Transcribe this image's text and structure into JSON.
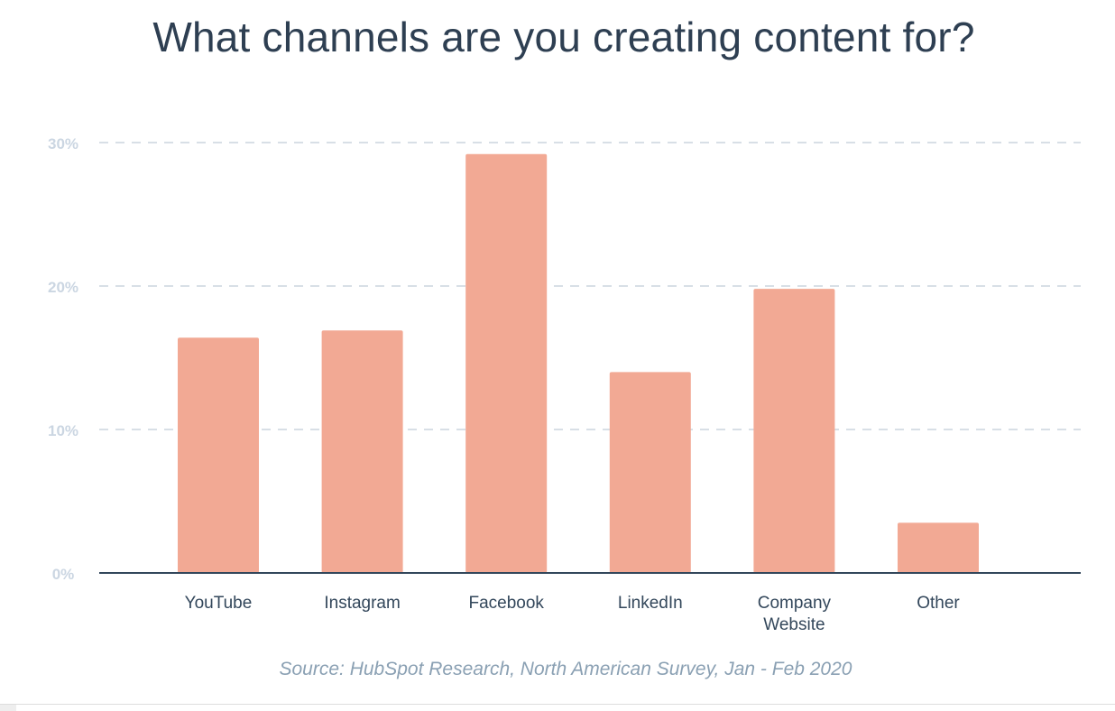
{
  "chart_data": {
    "type": "bar",
    "title": "What channels are you creating content for?",
    "categories": [
      "YouTube",
      "Instagram",
      "Facebook",
      "LinkedIn",
      "Company Website",
      "Other"
    ],
    "category_lines": [
      [
        "YouTube"
      ],
      [
        "Instagram"
      ],
      [
        "Facebook"
      ],
      [
        "LinkedIn"
      ],
      [
        "Company",
        "Website"
      ],
      [
        "Other"
      ]
    ],
    "values": [
      16.4,
      16.9,
      29.2,
      14.0,
      19.8,
      3.5
    ],
    "ylim": [
      0,
      30
    ],
    "yticks": [
      0,
      10,
      20,
      30
    ],
    "ytick_labels": [
      "0%",
      "10%",
      "20%",
      "30%"
    ],
    "xlabel": "",
    "ylabel": "",
    "grid": true,
    "source": "Source: HubSpot Research, North American Survey, Jan - Feb 2020",
    "colors": {
      "bar": "#f2a994",
      "title": "#2e3f52",
      "axis": "#33475b",
      "grid": "#d8dfe6",
      "tick_label": "#cbd6e2",
      "category_label": "#33475b",
      "source": "#8aa0b3"
    }
  }
}
